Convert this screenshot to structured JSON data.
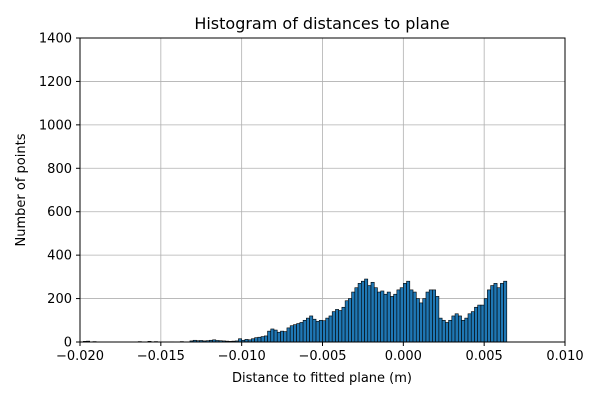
{
  "chart_data": {
    "type": "bar",
    "title": "Histogram of distances to plane",
    "xlabel": "Distance to fitted plane (m)",
    "ylabel": "Number of points",
    "xlim": [
      -0.02,
      0.01
    ],
    "ylim": [
      0,
      1400
    ],
    "x_ticks": [
      "−0.020",
      "−0.015",
      "−0.010",
      "−0.005",
      "0.000",
      "0.005",
      "0.010"
    ],
    "x_tick_values": [
      -0.02,
      -0.015,
      -0.01,
      -0.005,
      0.0,
      0.005,
      0.01
    ],
    "y_ticks": [
      "0",
      "200",
      "400",
      "600",
      "800",
      "1000",
      "1200",
      "1400"
    ],
    "y_tick_values": [
      0,
      200,
      400,
      600,
      800,
      1000,
      1200,
      1400
    ],
    "grid": true,
    "bar_color": "#1f77b4",
    "edge_color": "#000000",
    "bin_width": 0.0002,
    "bins": [
      [
        -0.0198,
        3
      ],
      [
        -0.0196,
        4
      ],
      [
        -0.0192,
        2
      ],
      [
        -0.0164,
        2
      ],
      [
        -0.0158,
        3
      ],
      [
        -0.0154,
        2
      ],
      [
        -0.0144,
        1
      ],
      [
        -0.0138,
        2
      ],
      [
        -0.0132,
        5
      ],
      [
        -0.013,
        8
      ],
      [
        -0.0128,
        6
      ],
      [
        -0.0126,
        7
      ],
      [
        -0.0124,
        5
      ],
      [
        -0.0122,
        6
      ],
      [
        -0.012,
        8
      ],
      [
        -0.0118,
        10
      ],
      [
        -0.0116,
        7
      ],
      [
        -0.0114,
        6
      ],
      [
        -0.0112,
        5
      ],
      [
        -0.011,
        4
      ],
      [
        -0.0108,
        3
      ],
      [
        -0.0106,
        4
      ],
      [
        -0.0104,
        5
      ],
      [
        -0.0102,
        15
      ],
      [
        -0.01,
        8
      ],
      [
        -0.0098,
        12
      ],
      [
        -0.0096,
        10
      ],
      [
        -0.0094,
        15
      ],
      [
        -0.0092,
        20
      ],
      [
        -0.009,
        22
      ],
      [
        -0.0088,
        25
      ],
      [
        -0.0086,
        28
      ],
      [
        -0.0084,
        50
      ],
      [
        -0.0082,
        60
      ],
      [
        -0.008,
        55
      ],
      [
        -0.0078,
        45
      ],
      [
        -0.0076,
        50
      ],
      [
        -0.0074,
        48
      ],
      [
        -0.0072,
        65
      ],
      [
        -0.007,
        75
      ],
      [
        -0.0068,
        80
      ],
      [
        -0.0066,
        85
      ],
      [
        -0.0064,
        90
      ],
      [
        -0.0062,
        100
      ],
      [
        -0.006,
        110
      ],
      [
        -0.0058,
        120
      ],
      [
        -0.0056,
        105
      ],
      [
        -0.0054,
        95
      ],
      [
        -0.0052,
        100
      ],
      [
        -0.005,
        98
      ],
      [
        -0.0048,
        110
      ],
      [
        -0.0046,
        120
      ],
      [
        -0.0044,
        140
      ],
      [
        -0.0042,
        150
      ],
      [
        -0.004,
        145
      ],
      [
        -0.0038,
        160
      ],
      [
        -0.0036,
        190
      ],
      [
        -0.0034,
        200
      ],
      [
        -0.0032,
        230
      ],
      [
        -0.003,
        250
      ],
      [
        -0.0028,
        270
      ],
      [
        -0.0026,
        280
      ],
      [
        -0.0024,
        290
      ],
      [
        -0.0022,
        260
      ],
      [
        -0.002,
        275
      ],
      [
        -0.0018,
        250
      ],
      [
        -0.0016,
        230
      ],
      [
        -0.0014,
        235
      ],
      [
        -0.0012,
        220
      ],
      [
        -0.001,
        230
      ],
      [
        -0.0008,
        210
      ],
      [
        -0.0006,
        220
      ],
      [
        -0.0004,
        240
      ],
      [
        -0.0002,
        250
      ],
      [
        0.0,
        270
      ],
      [
        0.0002,
        280
      ],
      [
        0.0004,
        240
      ],
      [
        0.0006,
        230
      ],
      [
        0.0008,
        200
      ],
      [
        0.001,
        180
      ],
      [
        0.0012,
        200
      ],
      [
        0.0014,
        230
      ],
      [
        0.0016,
        240
      ],
      [
        0.0018,
        240
      ],
      [
        0.002,
        210
      ],
      [
        0.0022,
        110
      ],
      [
        0.0024,
        100
      ],
      [
        0.0026,
        90
      ],
      [
        0.0028,
        100
      ],
      [
        0.003,
        120
      ],
      [
        0.0032,
        130
      ],
      [
        0.0034,
        120
      ],
      [
        0.0036,
        100
      ],
      [
        0.0038,
        110
      ],
      [
        0.004,
        130
      ],
      [
        0.0042,
        140
      ],
      [
        0.0044,
        160
      ],
      [
        0.0046,
        170
      ],
      [
        0.0048,
        170
      ],
      [
        0.005,
        200
      ],
      [
        0.0052,
        240
      ],
      [
        0.0054,
        260
      ],
      [
        0.0056,
        270
      ],
      [
        0.0058,
        250
      ],
      [
        0.006,
        270
      ],
      [
        0.0062,
        280
      ]
    ]
  }
}
